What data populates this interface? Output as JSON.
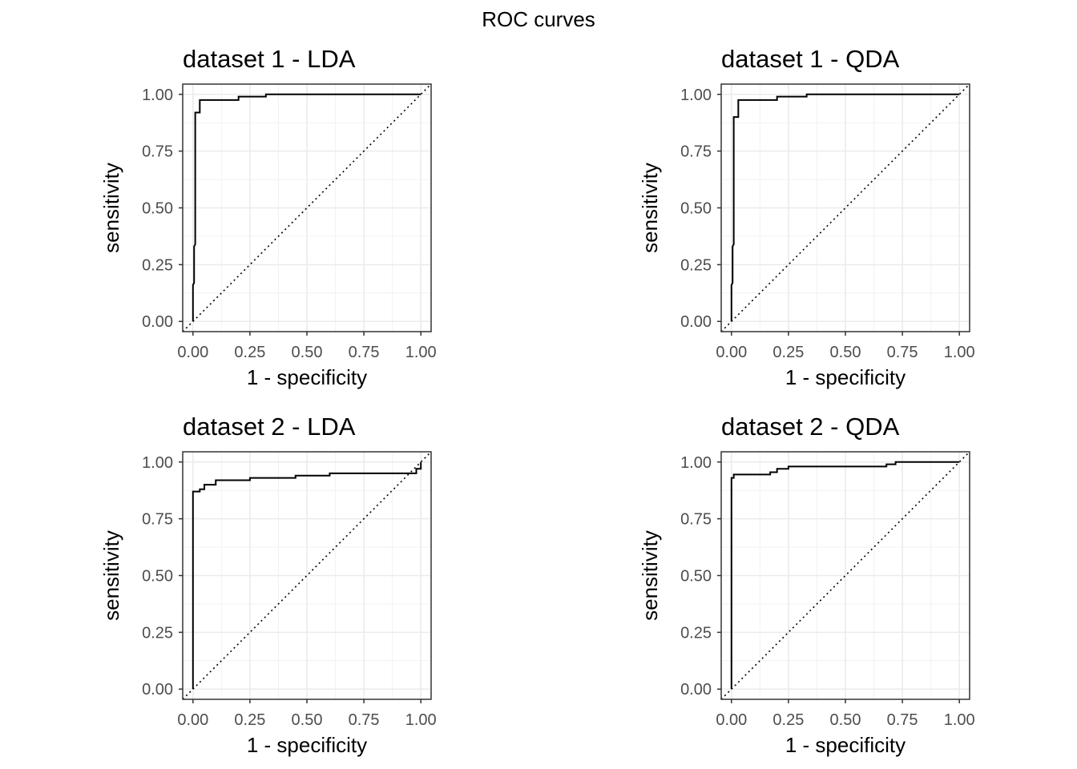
{
  "figure": {
    "title": "ROC curves"
  },
  "chart_data": [
    {
      "type": "line",
      "title": "dataset 1 - LDA",
      "xlabel": "1 - specificity",
      "ylabel": "sensitivity",
      "xlim": [
        0,
        1
      ],
      "ylim": [
        0,
        1
      ],
      "x_ticks": [
        "0.00",
        "0.25",
        "0.50",
        "0.75",
        "1.00"
      ],
      "y_ticks": [
        "0.00",
        "0.25",
        "0.50",
        "0.75",
        "1.00"
      ],
      "grid": true,
      "reference_line": "diagonal (dotted)",
      "series": [
        {
          "x": [
            0.0,
            0.0,
            0.005,
            0.005,
            0.01,
            0.01,
            0.03,
            0.03,
            0.2,
            0.2,
            0.32,
            0.32,
            1.0
          ],
          "y": [
            0.0,
            0.16,
            0.17,
            0.33,
            0.34,
            0.92,
            0.92,
            0.975,
            0.975,
            0.99,
            0.99,
            1.0,
            1.0
          ]
        }
      ]
    },
    {
      "type": "line",
      "title": "dataset 1 - QDA",
      "xlabel": "1 - specificity",
      "ylabel": "sensitivity",
      "xlim": [
        0,
        1
      ],
      "ylim": [
        0,
        1
      ],
      "x_ticks": [
        "0.00",
        "0.25",
        "0.50",
        "0.75",
        "1.00"
      ],
      "y_ticks": [
        "0.00",
        "0.25",
        "0.50",
        "0.75",
        "1.00"
      ],
      "grid": true,
      "reference_line": "diagonal (dotted)",
      "series": [
        {
          "x": [
            0.0,
            0.0,
            0.005,
            0.005,
            0.01,
            0.01,
            0.03,
            0.03,
            0.2,
            0.2,
            0.33,
            0.33,
            1.0
          ],
          "y": [
            0.0,
            0.16,
            0.17,
            0.33,
            0.34,
            0.9,
            0.9,
            0.975,
            0.975,
            0.99,
            0.99,
            1.0,
            1.0
          ]
        }
      ]
    },
    {
      "type": "line",
      "title": "dataset 2 - LDA",
      "xlabel": "1 - specificity",
      "ylabel": "sensitivity",
      "xlim": [
        0,
        1
      ],
      "ylim": [
        0,
        1
      ],
      "x_ticks": [
        "0.00",
        "0.25",
        "0.50",
        "0.75",
        "1.00"
      ],
      "y_ticks": [
        "0.00",
        "0.25",
        "0.50",
        "0.75",
        "1.00"
      ],
      "grid": true,
      "reference_line": "diagonal (dotted)",
      "series": [
        {
          "x": [
            0.0,
            0.0,
            0.03,
            0.03,
            0.05,
            0.05,
            0.1,
            0.1,
            0.25,
            0.25,
            0.45,
            0.45,
            0.6,
            0.6,
            0.98,
            0.98,
            1.0,
            1.0
          ],
          "y": [
            0.0,
            0.87,
            0.87,
            0.88,
            0.88,
            0.9,
            0.9,
            0.92,
            0.92,
            0.93,
            0.93,
            0.94,
            0.94,
            0.95,
            0.95,
            0.97,
            0.97,
            1.0
          ]
        }
      ]
    },
    {
      "type": "line",
      "title": "dataset 2 - QDA",
      "xlabel": "1 - specificity",
      "ylabel": "sensitivity",
      "xlim": [
        0,
        1
      ],
      "ylim": [
        0,
        1
      ],
      "x_ticks": [
        "0.00",
        "0.25",
        "0.50",
        "0.75",
        "1.00"
      ],
      "y_ticks": [
        "0.00",
        "0.25",
        "0.50",
        "0.75",
        "1.00"
      ],
      "grid": true,
      "reference_line": "diagonal (dotted)",
      "series": [
        {
          "x": [
            0.0,
            0.0,
            0.01,
            0.01,
            0.17,
            0.17,
            0.2,
            0.2,
            0.25,
            0.25,
            0.68,
            0.68,
            0.72,
            0.72,
            1.0
          ],
          "y": [
            0.0,
            0.93,
            0.93,
            0.945,
            0.945,
            0.955,
            0.955,
            0.97,
            0.97,
            0.98,
            0.98,
            0.99,
            0.99,
            1.0,
            1.0
          ]
        }
      ]
    }
  ]
}
